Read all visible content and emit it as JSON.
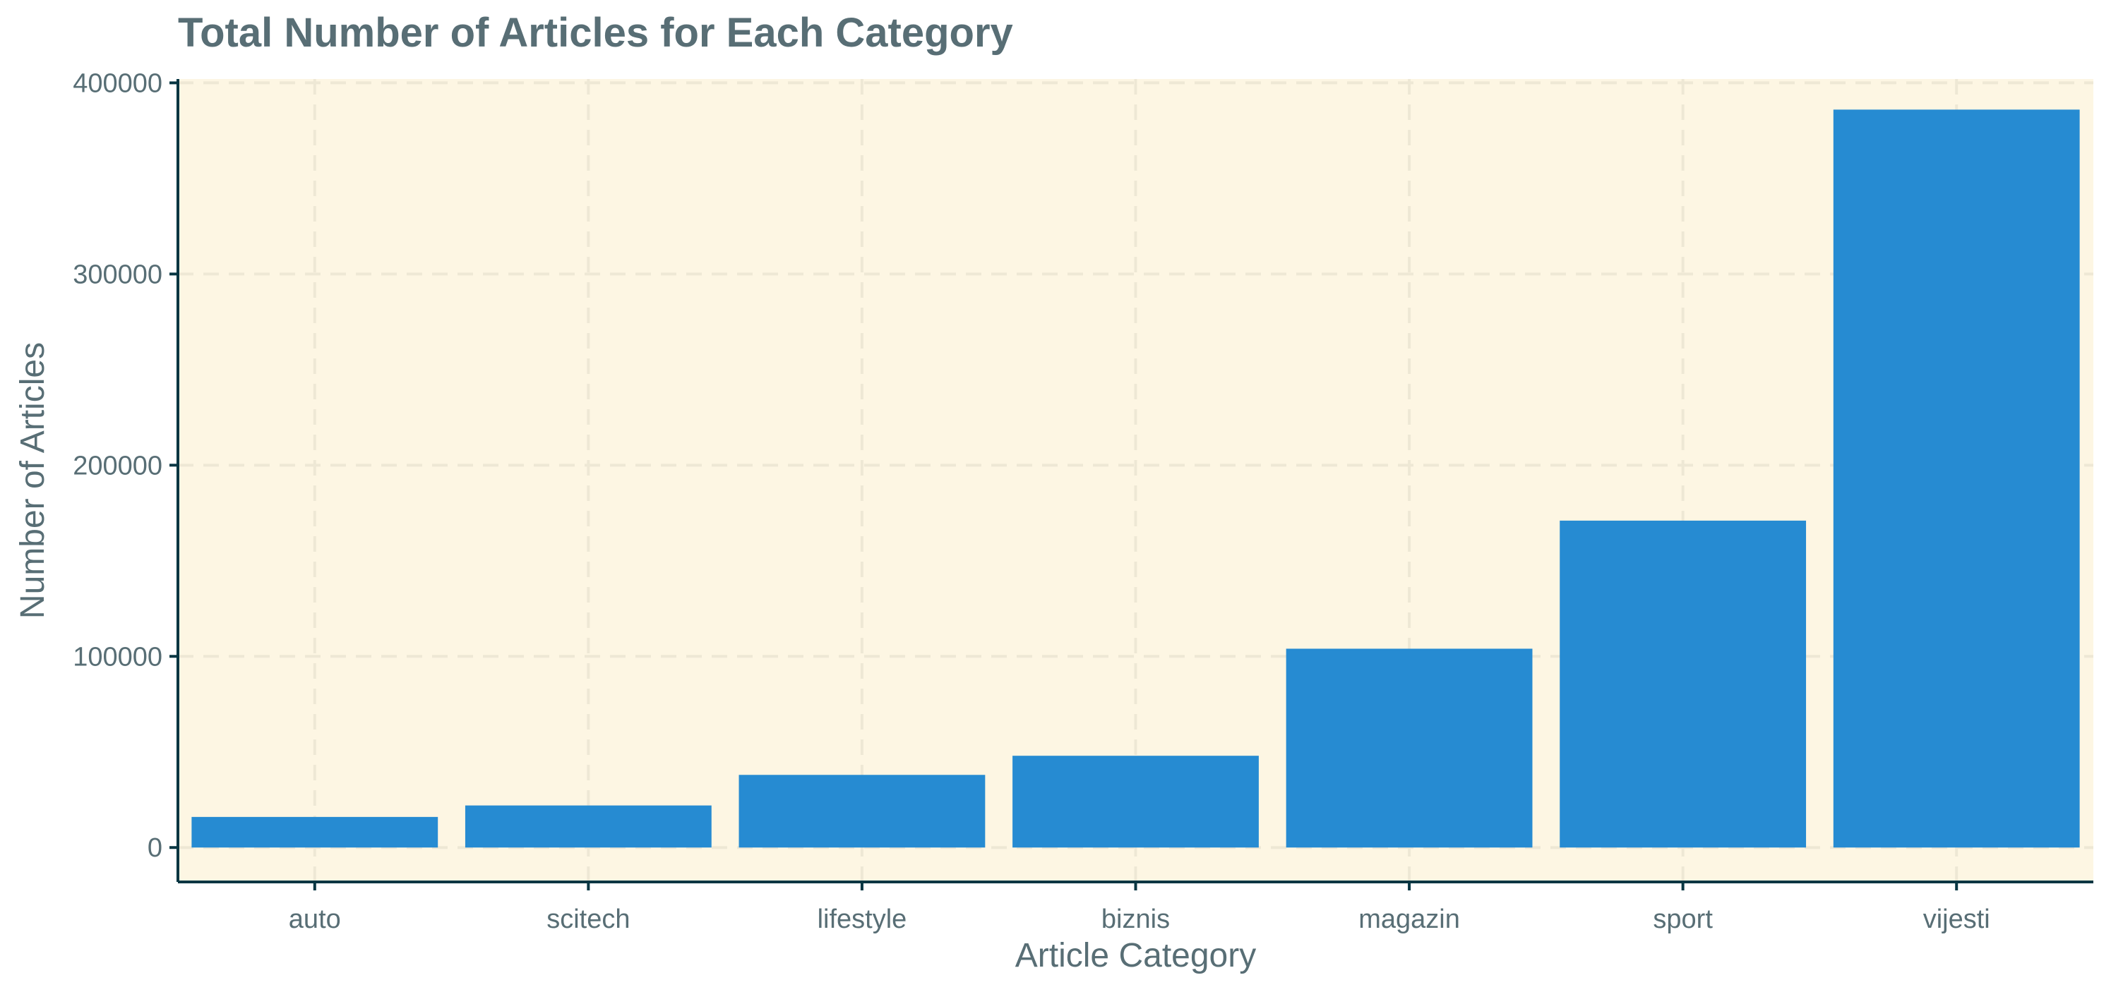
{
  "chart_data": {
    "type": "bar",
    "title": "Total Number of Articles for Each Category",
    "xlabel": "Article Category",
    "ylabel": "Number of Articles",
    "categories": [
      "auto",
      "scitech",
      "lifestyle",
      "biznis",
      "magazin",
      "sport",
      "vijesti"
    ],
    "values": [
      16000,
      22000,
      38000,
      48000,
      104000,
      171000,
      386000
    ],
    "ylim": [
      -18000,
      402000
    ],
    "yticks": [
      0,
      100000,
      200000,
      300000,
      400000
    ],
    "ytick_labels": [
      "0",
      "100000",
      "200000",
      "300000",
      "400000"
    ],
    "grid": true,
    "legend": "none"
  },
  "colors": {
    "bar": "#268bd2",
    "panel_background": "#fdf6e3",
    "grid": "#eee8d5",
    "axis": "#073642",
    "text": "#586e75"
  }
}
